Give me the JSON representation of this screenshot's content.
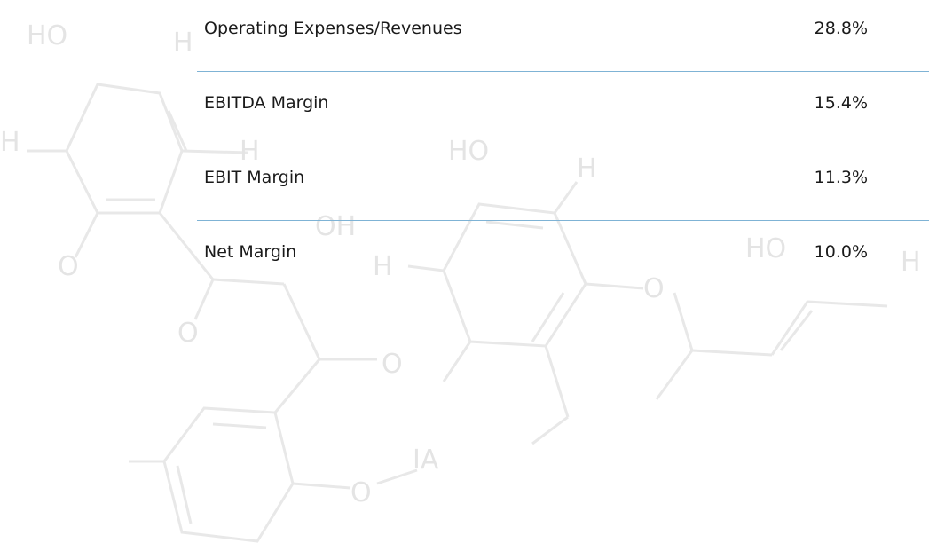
{
  "table": {
    "rows": [
      [
        "Operating Expenses/Revenues",
        "28.8%"
      ],
      [
        "EBITDA Margin",
        "15.4%"
      ],
      [
        "EBIT Margin",
        "11.3%"
      ],
      [
        "Net Margin",
        "10.0%"
      ]
    ]
  },
  "background": {
    "labels": [
      "HO",
      "H",
      "H",
      "H",
      "HO",
      "H",
      "OH",
      "O",
      "O",
      "H",
      "O",
      "HO",
      "H",
      "O",
      "IA",
      "O"
    ]
  }
}
